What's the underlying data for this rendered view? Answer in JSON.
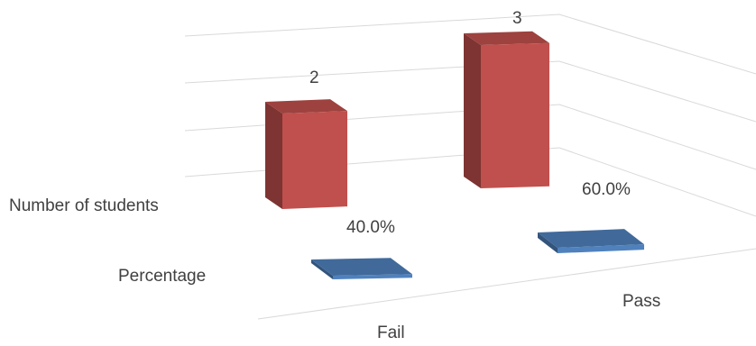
{
  "chart_data": {
    "type": "bar",
    "subtype": "3d-clustered-depth",
    "title": "",
    "categories": [
      "Fail",
      "Pass"
    ],
    "series": [
      {
        "name": "Number of students",
        "values": [
          2,
          3
        ],
        "labels": [
          "2",
          "3"
        ],
        "color": "#c0504d"
      },
      {
        "name": "Percentage",
        "values": [
          0.4,
          0.6
        ],
        "labels": [
          "40.0%",
          "60.0%"
        ],
        "color": "#4f81bd"
      }
    ],
    "grid": true,
    "legend": "none"
  }
}
